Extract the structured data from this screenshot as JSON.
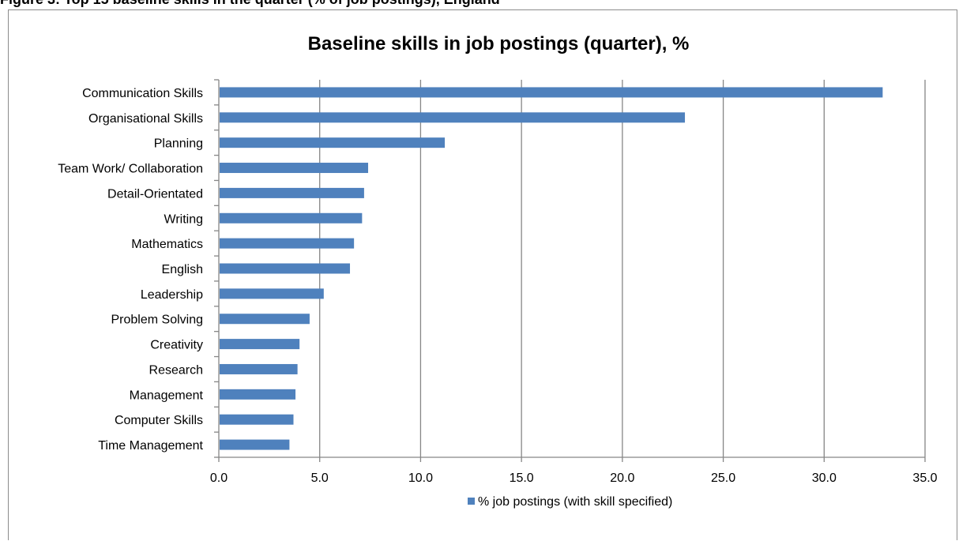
{
  "header": {
    "caption": "Figure 3: Top 15 baseline skills in the quarter (% of job postings), England"
  },
  "chart_data": {
    "type": "bar",
    "orientation": "horizontal",
    "title": "Baseline skills in job postings (quarter), %",
    "categories": [
      "Communication Skills",
      "Organisational Skills",
      "Planning",
      "Team Work/ Collaboration",
      "Detail-Orientated",
      "Writing",
      "Mathematics",
      "English",
      "Leadership",
      "Problem Solving",
      "Creativity",
      "Research",
      "Management",
      "Computer Skills",
      "Time Management"
    ],
    "series": [
      {
        "name": "% job postings (with skill specified)",
        "color": "#4f81bd",
        "values": [
          32.9,
          23.1,
          11.2,
          7.4,
          7.2,
          7.1,
          6.7,
          6.5,
          5.2,
          4.5,
          4.0,
          3.9,
          3.8,
          3.7,
          3.5
        ]
      }
    ],
    "xlim": [
      0,
      35
    ],
    "x_ticks": [
      "0.0",
      "5.0",
      "10.0",
      "15.0",
      "20.0",
      "25.0",
      "30.0",
      "35.0"
    ],
    "x_tick_values": [
      0,
      5,
      10,
      15,
      20,
      25,
      30,
      35
    ],
    "grid": "vertical",
    "gridline_color": "#868686",
    "legend_position": "bottom"
  }
}
